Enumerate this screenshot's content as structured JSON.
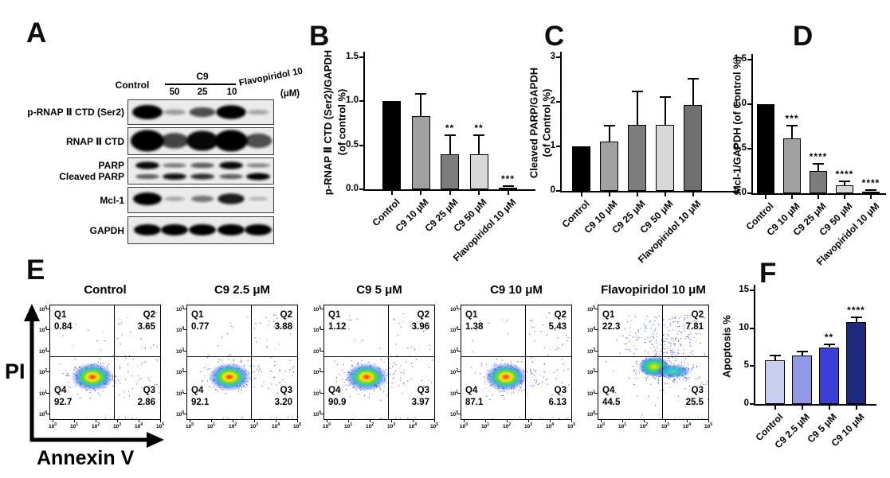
{
  "panelA": {
    "letter": "A",
    "header": {
      "control": "Control",
      "group": "C9",
      "doses": [
        "50",
        "25",
        "10"
      ],
      "drug": "Flavopiridol 10",
      "unit": "(μM)"
    },
    "rows": [
      {
        "label": "p-RNAP Ⅱ CTD (Ser2)",
        "bands": [
          1.0,
          0.15,
          0.55,
          0.95,
          0.1
        ]
      },
      {
        "label": "RNAP Ⅱ CTD",
        "bands": [
          1.0,
          0.6,
          0.9,
          1.0,
          0.55
        ]
      },
      {
        "label": "PARP",
        "label2": "Cleaved PARP",
        "bands": [
          0.9,
          0.35,
          0.5,
          0.9,
          0.3
        ],
        "bands2": [
          0.5,
          0.85,
          0.7,
          0.5,
          0.95
        ]
      },
      {
        "label": "Mcl-1",
        "bands": [
          1.0,
          0.12,
          0.35,
          0.8,
          0.05
        ]
      },
      {
        "label": "GAPDH",
        "bands": [
          1.0,
          0.95,
          1.0,
          1.0,
          0.95
        ]
      }
    ]
  },
  "panelE": {
    "letter": "E",
    "xlabel": "Annexin V",
    "ylabel": "PI",
    "quadrant_labels": [
      "Q1",
      "Q2",
      "Q3",
      "Q4"
    ],
    "axis_tick_exponents": [
      0,
      1,
      2,
      3,
      4,
      5
    ],
    "plots": [
      {
        "title": "Control",
        "q1": "0.84",
        "q2": "3.65",
        "q3": "2.86",
        "q4": "92.7"
      },
      {
        "title": "C9 2.5 μM",
        "q1": "0.77",
        "q2": "3.88",
        "q3": "3.20",
        "q4": "92.1"
      },
      {
        "title": "C9 5 μM",
        "q1": "1.12",
        "q2": "3.96",
        "q3": "3.97",
        "q4": "90.9"
      },
      {
        "title": "C9 10 μM",
        "q1": "1.38",
        "q2": "5.43",
        "q3": "6.13",
        "q4": "87.1"
      },
      {
        "title": "Flavopiridol 10 μM",
        "q1": "22.3",
        "q2": "7.81",
        "q3": "25.5",
        "q4": "44.5",
        "shifted": true
      }
    ]
  },
  "chart_data": [
    {
      "id": "B",
      "panel_letter": "B",
      "type": "bar",
      "categories": [
        "Control",
        "C9 10 μM",
        "C9 25 μM",
        "C9 50 μM",
        "Flavopiridol 10 μM"
      ],
      "values": [
        1.0,
        0.83,
        0.4,
        0.4,
        0.02
      ],
      "errors": [
        0,
        0.25,
        0.21,
        0.21,
        0.015
      ],
      "significance": [
        "",
        "",
        "**",
        "**",
        "***"
      ],
      "ylabel_lines": [
        "p-RNAP Ⅱ CTD (Ser2)/GAPDH",
        "(of control %)"
      ],
      "ylim": [
        0,
        1.5
      ],
      "yticks": [
        "0.0",
        "0.5",
        "1.0",
        "1.5"
      ],
      "bar_colors": [
        "#000000",
        "#a1a1a1",
        "#7c7c7c",
        "#d8d8d8",
        "#1e1e1e"
      ]
    },
    {
      "id": "C",
      "panel_letter": "C",
      "type": "bar",
      "categories": [
        "Control",
        "C9 10 μM",
        "C9 25 μM",
        "C9 50 μM",
        "Flavopiridol 10 μM"
      ],
      "values": [
        1.0,
        1.11,
        1.48,
        1.48,
        1.93
      ],
      "errors": [
        0,
        0.36,
        0.76,
        0.62,
        0.58
      ],
      "significance": [
        "",
        "",
        "",
        "",
        ""
      ],
      "ylabel_lines": [
        "Cleaved PARP/GAPDH",
        "(of Control %)"
      ],
      "ylim": [
        0,
        3
      ],
      "yticks": [
        "0",
        "1",
        "2",
        "3"
      ],
      "bar_colors": [
        "#000000",
        "#a1a1a1",
        "#7c7c7c",
        "#d8d8d8",
        "#6f6f6f"
      ]
    },
    {
      "id": "D",
      "panel_letter": "D",
      "type": "bar",
      "categories": [
        "Control",
        "C9 10 μM",
        "C9 25 μM",
        "C9 50 μM",
        "Flavopiridol 10 μM"
      ],
      "values": [
        1.0,
        0.62,
        0.25,
        0.09,
        0.015
      ],
      "errors": [
        0,
        0.14,
        0.08,
        0.045,
        0.01
      ],
      "significance": [
        "",
        "***",
        "****",
        "****",
        "****"
      ],
      "ylabel_lines": [
        "Mcl-1/GAPDH (of Control %)"
      ],
      "ylim": [
        0,
        1.5
      ],
      "yticks": [
        "0.0",
        "0.5",
        "1.0",
        "1.5"
      ],
      "bar_colors": [
        "#000000",
        "#a1a1a1",
        "#7c7c7c",
        "#d8d8d8",
        "#1e1e1e"
      ]
    },
    {
      "id": "F",
      "panel_letter": "F",
      "type": "bar",
      "categories": [
        "Control",
        "C9 2.5 μM",
        "C9 5 μM",
        "C9 10 μM"
      ],
      "values": [
        5.8,
        6.4,
        7.5,
        10.8
      ],
      "errors": [
        0.6,
        0.55,
        0.35,
        0.6
      ],
      "significance": [
        "",
        "",
        "**",
        "****"
      ],
      "ylabel_lines": [
        "Apoptosis %"
      ],
      "ylim": [
        0,
        15
      ],
      "yticks": [
        "0",
        "5",
        "10",
        "15"
      ],
      "bar_colors": [
        "#c9cdf0",
        "#9298e6",
        "#3b3fd8",
        "#1b2a7d"
      ]
    }
  ]
}
